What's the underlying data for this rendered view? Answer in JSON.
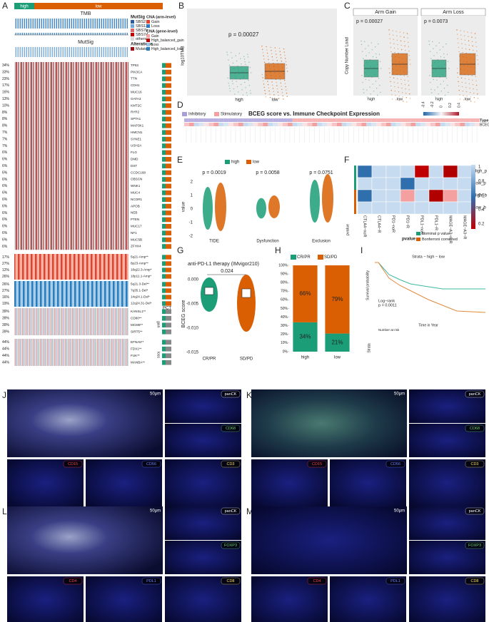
{
  "panels": {
    "A": {
      "letter": "A",
      "groups": [
        "high",
        "low"
      ],
      "tmb_label": "TMB",
      "mutsig_label": "MutSig",
      "mutsig_legend_title": "MutSig",
      "mutsig_legend": [
        "SBS2",
        "SBS13",
        "SBS7b",
        "SBS7d",
        "others"
      ],
      "alter_title": "Alterations",
      "alter_legend": [
        "Mutated"
      ],
      "cna_arm_title": "CNA (arm-level)",
      "cna_arm_legend": [
        "Gain",
        "Loss"
      ],
      "cna_gene_title": "CNA (gene-level)",
      "cna_gene_legend": [
        "Gain",
        "High_balanced_gain",
        "Loss",
        "High_balanced_loss"
      ],
      "genes": [
        [
          "34%",
          "TP53"
        ],
        [
          "33%",
          "PIK3CA"
        ],
        [
          "23%",
          "TTN"
        ],
        [
          "17%",
          "CDH1"
        ],
        [
          "16%",
          "MUC16"
        ],
        [
          "13%",
          "GATA3"
        ],
        [
          "10%",
          "KMT2C"
        ],
        [
          "8%",
          "RYR2"
        ],
        [
          "8%",
          "SPTA1"
        ],
        [
          "8%",
          "MAP3K1"
        ],
        [
          "7%",
          "HMCN1"
        ],
        [
          "7%",
          "SYNE1"
        ],
        [
          "7%",
          "USH2A"
        ],
        [
          "6%",
          "FLG"
        ],
        [
          "6%",
          "DMD"
        ],
        [
          "6%",
          "DST"
        ],
        [
          "6%",
          "CCDC168"
        ],
        [
          "6%",
          "OBSCN"
        ],
        [
          "6%",
          "WNK1"
        ],
        [
          "6%",
          "MUC4"
        ],
        [
          "6%",
          "NCOR1"
        ],
        [
          "6%",
          "APOB"
        ],
        [
          "6%",
          "NEB"
        ],
        [
          "6%",
          "PTEN"
        ],
        [
          "6%",
          "MUC17"
        ],
        [
          "6%",
          "NF1"
        ],
        [
          "6%",
          "MUC5B"
        ],
        [
          "6%",
          "ZFHX4"
        ]
      ],
      "arm_gain": [
        [
          "17%",
          "5q21-Amp**"
        ],
        [
          "27%",
          "8p23-Amp**"
        ],
        [
          "12%",
          "18q22.3-Amp*"
        ],
        [
          "26%",
          "18p11.1-Amp*"
        ]
      ],
      "arm_loss": [
        [
          "26%",
          "5q21.3-Del**"
        ],
        [
          "27%",
          "7q35.1-Del*"
        ],
        [
          "16%",
          "14q24.1-Del*"
        ],
        [
          "19%",
          "12q24.31-Del*"
        ]
      ],
      "gene_gain": [
        [
          "39%",
          "KANSL1**"
        ],
        [
          "39%",
          "CD80**"
        ],
        [
          "39%",
          "MCM8**"
        ],
        [
          "39%",
          "SIRT5**"
        ]
      ],
      "gene_loss": [
        [
          "44%",
          "EFNA5**"
        ],
        [
          "44%",
          "FDX1**"
        ],
        [
          "44%",
          "FUK**"
        ],
        [
          "44%",
          "MANBA**"
        ]
      ],
      "pct_label": "PCT",
      "side_gain": "gain",
      "side_loss": "loss"
    },
    "B": {
      "letter": "B",
      "ylabel": "log10TMB",
      "p": "p = 0.00027",
      "categories": [
        "high",
        "low"
      ]
    },
    "C": {
      "letter": "C",
      "facets": [
        "Arm Gain",
        "Arm Loss"
      ],
      "p": [
        "p = 0.00027",
        "p = 0.0073"
      ],
      "ylabel": "Copy Number Load",
      "categories": [
        "high",
        "low",
        "high",
        "low"
      ]
    },
    "D": {
      "letter": "D",
      "legend": [
        "Inhibitory",
        "Stimulatory"
      ],
      "title": "BCEG score vs. Immune Checkpoint Expression",
      "scale": [
        "-0.4",
        "-0.2",
        "0",
        "0.2",
        "0.4"
      ],
      "row_labels": [
        "Type",
        "BCEG score"
      ]
    },
    "E": {
      "letter": "E",
      "legend": [
        "high",
        "low"
      ],
      "p": [
        "p = 0.0019",
        "p = 0.0058",
        "p = 0.0751"
      ],
      "categories": [
        "TIDE",
        "Dysfunction",
        "Exclusion"
      ],
      "ylabel": "value",
      "yticks": [
        "2",
        "1",
        "0",
        "-1",
        "-2"
      ]
    },
    "F": {
      "letter": "F",
      "cols": [
        "CTLA4−noR",
        "CTLA4−R",
        "PD1−noR",
        "PD1−R",
        "PDL1−noR",
        "PDL1−R",
        "MAGE−A3−noR",
        "MAGE−A3−R"
      ],
      "rows": [
        "High_p",
        "Low_p",
        "High_b",
        "Low_b"
      ],
      "scale": [
        "1",
        "0.8",
        "0.6",
        "0.4",
        "0.2"
      ],
      "legend_title": "pvalue",
      "legend": [
        "Nominal p value",
        "Bonferroni corrected"
      ],
      "side_label": "pvalue"
    },
    "G": {
      "letter": "G",
      "title": "anti-PD-L1 therapy (IMvigor210)",
      "p": "0.024",
      "ylabel": "BCEG score",
      "yticks": [
        "0.000",
        "-0.005",
        "-0.010",
        "-0.015"
      ],
      "categories": [
        "CR/PR",
        "SD/PD"
      ]
    },
    "H": {
      "letter": "H"
    },
    "I": {
      "letter": "I",
      "strata": "Strata − high − low",
      "ylabel": "Survival probability",
      "xlabel": "Time in Year",
      "logrank": "Log−rank",
      "p": "p = 0.0011",
      "risk_title": "Number at risk",
      "risk_label": "Strata"
    },
    "J": {
      "letter": "J",
      "scale": "50μm",
      "tiles": [
        "panCK",
        "CD68",
        "CD15",
        "CD56",
        "CD3"
      ]
    },
    "K": {
      "letter": "K",
      "scale": "50μm",
      "tiles": [
        "panCK",
        "CD68",
        "CD15",
        "CD56",
        "CD3"
      ]
    },
    "L": {
      "letter": "L",
      "scale": "50μm",
      "tiles": [
        "panCK",
        "FOXP3",
        "CD4",
        "PDL1",
        "CD8"
      ]
    },
    "M": {
      "letter": "M",
      "scale": "50μm",
      "tiles": [
        "panCK",
        "FOXP3",
        "CD4",
        "PDL1",
        "CD8"
      ]
    }
  },
  "chart_data": {
    "type": "bar",
    "stacked": true,
    "categories": [
      "high",
      "low"
    ],
    "series": [
      {
        "name": "CR/PR",
        "color": "#1b9e77",
        "values": [
          34,
          21
        ],
        "value_labels": [
          "34%",
          "21%"
        ]
      },
      {
        "name": "SD/PD",
        "color": "#d95f02",
        "values": [
          66,
          79
        ],
        "value_labels": [
          "66%",
          "79%"
        ]
      }
    ],
    "ylim": [
      0,
      100
    ],
    "yticks": [
      {
        "value": 0,
        "label": "0%"
      },
      {
        "value": 10,
        "label": "10%"
      },
      {
        "value": 20,
        "label": "20%"
      },
      {
        "value": 30,
        "label": "30%"
      },
      {
        "value": 40,
        "label": "40%"
      },
      {
        "value": 50,
        "label": "50%"
      },
      {
        "value": 60,
        "label": "60%"
      },
      {
        "value": 70,
        "label": "70%"
      },
      {
        "value": 80,
        "label": "80%"
      },
      {
        "value": 90,
        "label": "90%"
      },
      {
        "value": 100,
        "label": "100%"
      }
    ]
  }
}
